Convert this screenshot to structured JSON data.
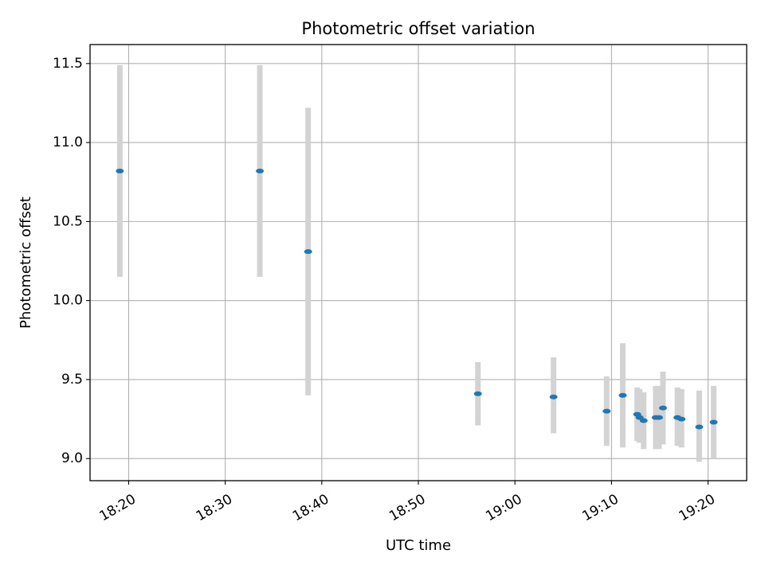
{
  "chart_data": {
    "type": "scatter",
    "title": "Photometric offset variation",
    "xlabel": "UTC time",
    "ylabel": "Photometric offset",
    "x_unit": "time of day (HH:MM, UTC)",
    "xlim": [
      "18:16",
      "19:24"
    ],
    "ylim": [
      8.86,
      11.62
    ],
    "xticks": [
      "18:20",
      "18:30",
      "18:40",
      "18:50",
      "19:00",
      "19:10",
      "19:20"
    ],
    "yticks": [
      "9.0",
      "9.5",
      "10.0",
      "10.5",
      "11.0",
      "11.5"
    ],
    "grid": true,
    "legend": "none",
    "colors": {
      "point": "#1f77b4",
      "errorbar": "#d3d3d3",
      "grid": "#b0b0b0"
    },
    "series": [
      {
        "points": [
          {
            "x": "18:19:05",
            "y": 10.82,
            "y_low": 10.15,
            "y_high": 11.49
          },
          {
            "x": "18:33:35",
            "y": 10.82,
            "y_low": 10.15,
            "y_high": 11.49
          },
          {
            "x": "18:38:35",
            "y": 10.31,
            "y_low": 9.4,
            "y_high": 11.22
          },
          {
            "x": "18:56:10",
            "y": 9.41,
            "y_low": 9.21,
            "y_high": 9.61
          },
          {
            "x": "19:04:00",
            "y": 9.39,
            "y_low": 9.16,
            "y_high": 9.64
          },
          {
            "x": "19:09:30",
            "y": 9.3,
            "y_low": 9.08,
            "y_high": 9.52
          },
          {
            "x": "19:11:10",
            "y": 9.4,
            "y_low": 9.07,
            "y_high": 9.73
          },
          {
            "x": "19:12:40",
            "y": 9.28,
            "y_low": 9.11,
            "y_high": 9.45
          },
          {
            "x": "19:12:55",
            "y": 9.26,
            "y_low": 9.1,
            "y_high": 9.44
          },
          {
            "x": "19:13:20",
            "y": 9.24,
            "y_low": 9.06,
            "y_high": 9.42
          },
          {
            "x": "19:14:35",
            "y": 9.26,
            "y_low": 9.06,
            "y_high": 9.46
          },
          {
            "x": "19:14:55",
            "y": 9.26,
            "y_low": 9.06,
            "y_high": 9.46
          },
          {
            "x": "19:15:20",
            "y": 9.32,
            "y_low": 9.09,
            "y_high": 9.55
          },
          {
            "x": "19:16:50",
            "y": 9.26,
            "y_low": 9.08,
            "y_high": 9.45
          },
          {
            "x": "19:17:15",
            "y": 9.25,
            "y_low": 9.07,
            "y_high": 9.44
          },
          {
            "x": "19:19:05",
            "y": 9.2,
            "y_low": 8.98,
            "y_high": 9.43
          },
          {
            "x": "19:20:35",
            "y": 9.23,
            "y_low": 9.0,
            "y_high": 9.46
          }
        ]
      }
    ]
  }
}
